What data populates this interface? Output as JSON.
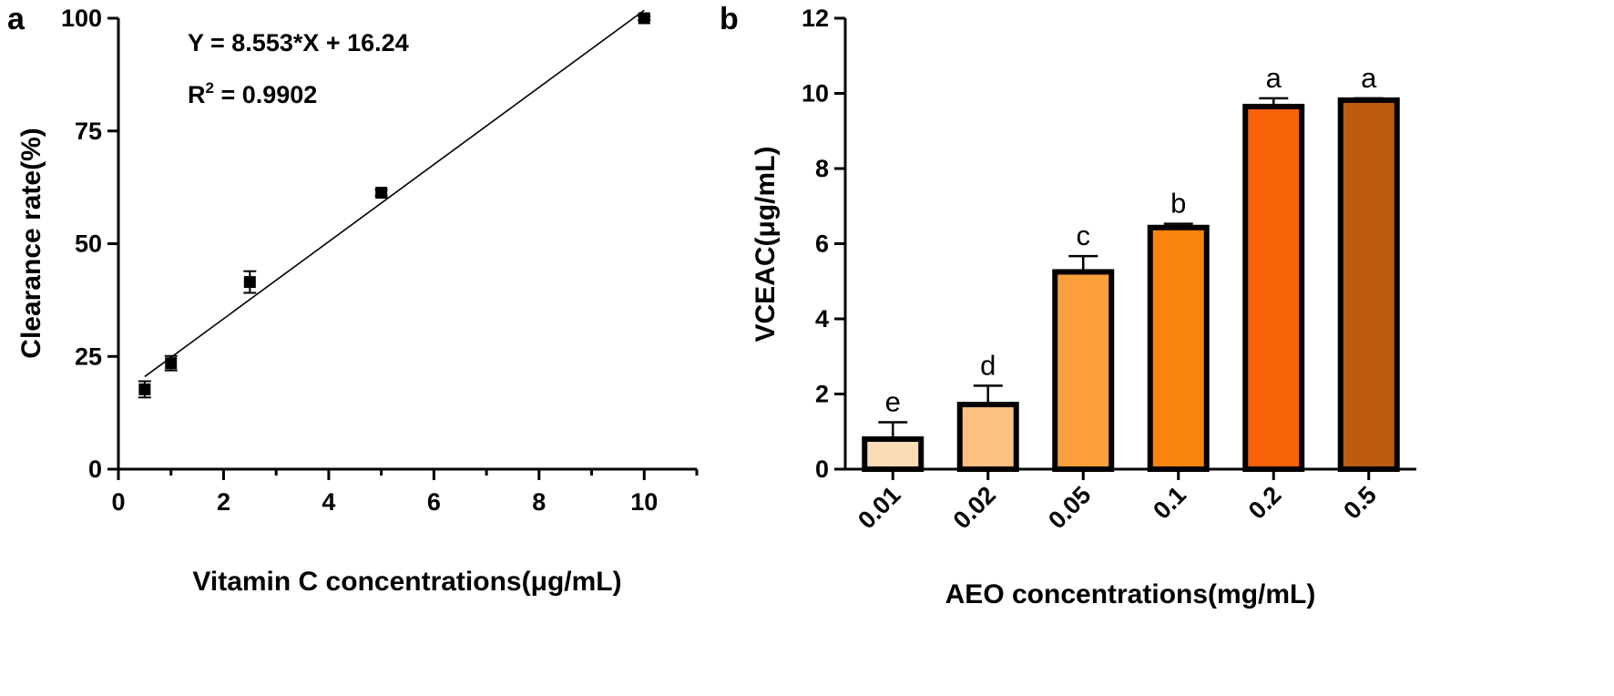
{
  "chart_data": [
    {
      "type": "scatter",
      "panel_label": "a",
      "equation": "Y = 8.553*X + 16.24",
      "r2_prefix": "R",
      "r2_sup": "2",
      "r2_value": " = 0.9902",
      "xlabel": "Vitamin C concentrations(μg/mL)",
      "ylabel": "Clearance rate(%)",
      "xlim": [
        0,
        11
      ],
      "ylim": [
        0,
        100
      ],
      "xticks": [
        0,
        2,
        4,
        6,
        8,
        10
      ],
      "xtick_labels": [
        "0",
        "2",
        "4",
        "6",
        "8",
        "10"
      ],
      "yticks": [
        0,
        25,
        50,
        75,
        100
      ],
      "ytick_labels": [
        "0",
        "25",
        "50",
        "75",
        "100"
      ],
      "fit_line": {
        "slope": 8.553,
        "intercept": 16.24,
        "x_range": [
          0.5,
          10
        ]
      },
      "points": [
        {
          "x": 0.5,
          "y": 17.7,
          "err": 1.8
        },
        {
          "x": 1,
          "y": 23.5,
          "err": 1.6
        },
        {
          "x": 2.5,
          "y": 41.5,
          "err": 2.4
        },
        {
          "x": 5,
          "y": 61.3,
          "err": 0.7
        },
        {
          "x": 10,
          "y": 100,
          "err": 0.4
        }
      ],
      "grid": false
    },
    {
      "type": "bar",
      "panel_label": "b",
      "xlabel": "AEO concentrations(mg/mL)",
      "ylabel": "VCEAC(μg/mL)",
      "ylim": [
        0,
        12
      ],
      "yticks": [
        0,
        2,
        4,
        6,
        8,
        10,
        12
      ],
      "ytick_labels": [
        "0",
        "2",
        "4",
        "6",
        "8",
        "10",
        "12"
      ],
      "categories": [
        "0.01",
        "0.02",
        "0.05",
        "0.1",
        "0.2",
        "0.5"
      ],
      "values": [
        0.8,
        1.72,
        5.25,
        6.43,
        9.65,
        9.82
      ],
      "errors": [
        0.45,
        0.5,
        0.42,
        0.1,
        0.22,
        0.05
      ],
      "significance_letters": [
        "e",
        "d",
        "c",
        "b",
        "a",
        "a"
      ],
      "colors": [
        "#FCDCB8",
        "#FCC181",
        "#FB9F3D",
        "#FA830C",
        "#F86207",
        "#BC5C10"
      ],
      "grid": false
    }
  ]
}
